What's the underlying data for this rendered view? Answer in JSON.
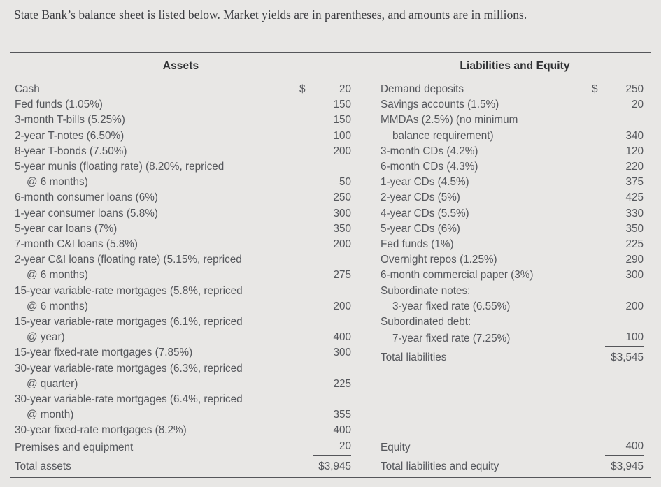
{
  "intro": "State Bank’s balance sheet is listed below. Market yields are in parentheses, and amounts are in millions.",
  "balance_sheet": {
    "assets": {
      "header": "Assets",
      "rows": [
        {
          "label": "Cash",
          "currency": "$",
          "amount": "20"
        },
        {
          "label": "Fed funds (1.05%)",
          "amount": "150"
        },
        {
          "label": "3-month T-bills (5.25%)",
          "amount": "150"
        },
        {
          "label": "2-year T-notes (6.50%)",
          "amount": "100"
        },
        {
          "label": "8-year T-bonds (7.50%)",
          "amount": "200"
        },
        {
          "label": "5-year munis (floating rate) (8.20%, repriced",
          "label2": "@ 6 months)",
          "amount": "50"
        },
        {
          "label": "6-month consumer loans (6%)",
          "amount": "250"
        },
        {
          "label": "1-year consumer loans (5.8%)",
          "amount": "300"
        },
        {
          "label": "5-year car loans (7%)",
          "amount": "350"
        },
        {
          "label": "7-month C&I loans (5.8%)",
          "amount": "200"
        },
        {
          "label": "2-year C&I loans (floating rate) (5.15%, repriced",
          "label2": "@ 6 months)",
          "amount": "275"
        },
        {
          "label": "15-year variable-rate mortgages (5.8%, repriced",
          "label2": "@ 6 months)",
          "amount": "200"
        },
        {
          "label": "15-year variable-rate mortgages (6.1%, repriced",
          "label2": "@ year)",
          "amount": "400"
        },
        {
          "label": "15-year fixed-rate mortgages (7.85%)",
          "amount": "300"
        },
        {
          "label": "30-year variable-rate mortgages (6.3%, repriced",
          "label2": "@ quarter)",
          "amount": "225"
        },
        {
          "label": "30-year variable-rate mortgages (6.4%, repriced",
          "label2": "@ month)",
          "amount": "355"
        },
        {
          "label": "30-year fixed-rate mortgages (8.2%)",
          "amount": "400"
        },
        {
          "label": "Premises and equipment",
          "amount": "20",
          "underline": true
        }
      ],
      "total": {
        "label": "Total assets",
        "amount": "$3,945"
      }
    },
    "liabilities": {
      "header": "Liabilities and Equity",
      "rows": [
        {
          "label": "Demand deposits",
          "currency": "$",
          "amount": "250"
        },
        {
          "label": "Savings accounts (1.5%)",
          "amount": "20"
        },
        {
          "label": "MMDAs (2.5%) (no minimum",
          "label2": "balance requirement)",
          "amount": "340"
        },
        {
          "label": "3-month CDs (4.2%)",
          "amount": "120"
        },
        {
          "label": "6-month CDs (4.3%)",
          "amount": "220"
        },
        {
          "label": "1-year CDs (4.5%)",
          "amount": "375"
        },
        {
          "label": "2-year CDs (5%)",
          "amount": "425"
        },
        {
          "label": "4-year CDs (5.5%)",
          "amount": "330"
        },
        {
          "label": "5-year CDs (6%)",
          "amount": "350"
        },
        {
          "label": "Fed funds (1%)",
          "amount": "225"
        },
        {
          "label": "Overnight repos (1.25%)",
          "amount": "290"
        },
        {
          "label": "6-month commercial paper (3%)",
          "amount": "300"
        },
        {
          "label": "Subordinate notes:"
        },
        {
          "label": "3-year fixed rate (6.55%)",
          "indent": true,
          "amount": "200"
        },
        {
          "label": "Subordinated debt:"
        },
        {
          "label": "7-year fixed rate (7.25%)",
          "indent": true,
          "amount": "100",
          "underline": true
        }
      ],
      "total": {
        "label": "Total liabilities",
        "amount": "$3,545"
      },
      "equity_rows": [
        {
          "label": "Equity",
          "amount": "400",
          "underline": true
        },
        {
          "label": "Total liabilities and equity",
          "amount": "$3,945"
        }
      ]
    }
  },
  "colors": {
    "background": "#e8e7e5",
    "text": "#55575c",
    "heading": "#2f3033",
    "rule": "#55565a"
  }
}
